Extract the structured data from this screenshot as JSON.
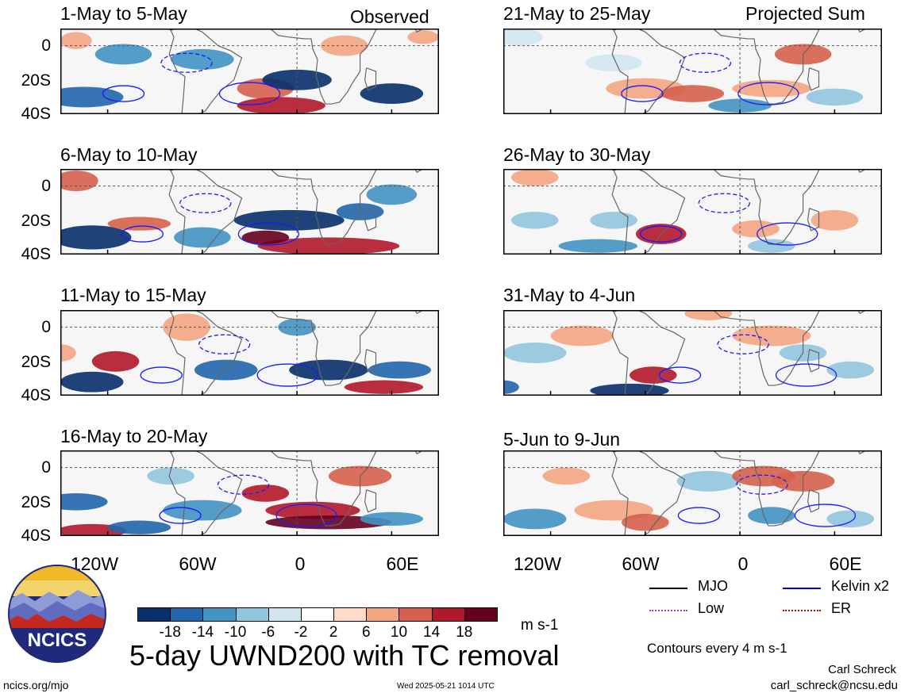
{
  "chart_data": {
    "type": "heatmap",
    "title": "5-day UWND200 with TC removal",
    "units": "m s-1",
    "colorbar": {
      "ticks": [
        "-18",
        "-14",
        "-10",
        "-6",
        "-2",
        "2",
        "6",
        "10",
        "14",
        "18"
      ],
      "colors": [
        "#08306b",
        "#2166ac",
        "#4393c3",
        "#92c5de",
        "#d1e5f0",
        "#ffffff",
        "#fddbc7",
        "#f4a582",
        "#d6604d",
        "#b2182b",
        "#67001f"
      ]
    },
    "contour_note": "Contours every 4 m s-1",
    "x_ticks": [
      "120W",
      "60W",
      "0",
      "60E"
    ],
    "y_ticks": [
      "0",
      "20S",
      "40S"
    ],
    "legend": [
      {
        "name": "MJO",
        "color": "#000000"
      },
      {
        "name": "Kelvin x2",
        "color": "#0000dd"
      },
      {
        "name": "Low",
        "color": "#aa33cc"
      },
      {
        "name": "ER",
        "color": "#cc0000"
      }
    ],
    "columns": [
      {
        "label": "Observed",
        "panels": [
          "1-May to 5-May",
          "6-May to 10-May",
          "11-May to 15-May",
          "16-May to 20-May"
        ]
      },
      {
        "label": "Projected Sum",
        "panels": [
          "21-May to 25-May",
          "26-May to 30-May",
          "31-May to 4-Jun",
          "5-Jun to 9-Jun"
        ]
      }
    ]
  },
  "footer": {
    "site": "ncics.org/mjo",
    "timestamp": "Wed 2025-05-21 1014 UTC",
    "author": "Carl Schreck",
    "email": "carl_schreck@ncsu.edu",
    "logo_text": "NCICS"
  }
}
